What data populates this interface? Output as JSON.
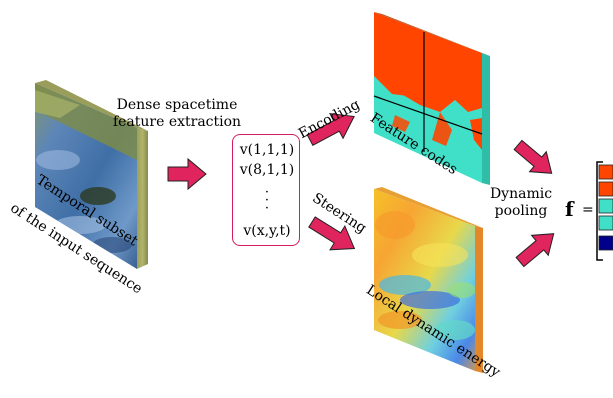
{
  "labels": {
    "dense_line1": "Dense spacetime",
    "dense_line2": "feature extraction",
    "temporal_line1": "Temporal subset",
    "temporal_line2": "of the input sequence",
    "encoding": "Encoding",
    "steering": "Steering",
    "feature_codes": "Feature codes",
    "local_dynamic_energy": "Local dynamic energy",
    "dynamic": "Dynamic",
    "pooling": "pooling",
    "f_symbol": "f",
    "equals": "="
  },
  "vectors": {
    "v1": "v(1,1,1)",
    "v2": "v(8,1,1)",
    "vdots": "·",
    "vlast": "v(x,y,t)"
  },
  "colors": {
    "arrow": "#e0245e",
    "box_border": "#d81b60",
    "code_orange": "#ff4500",
    "code_cyan": "#40e0c8",
    "code_navy": "#00008b"
  }
}
